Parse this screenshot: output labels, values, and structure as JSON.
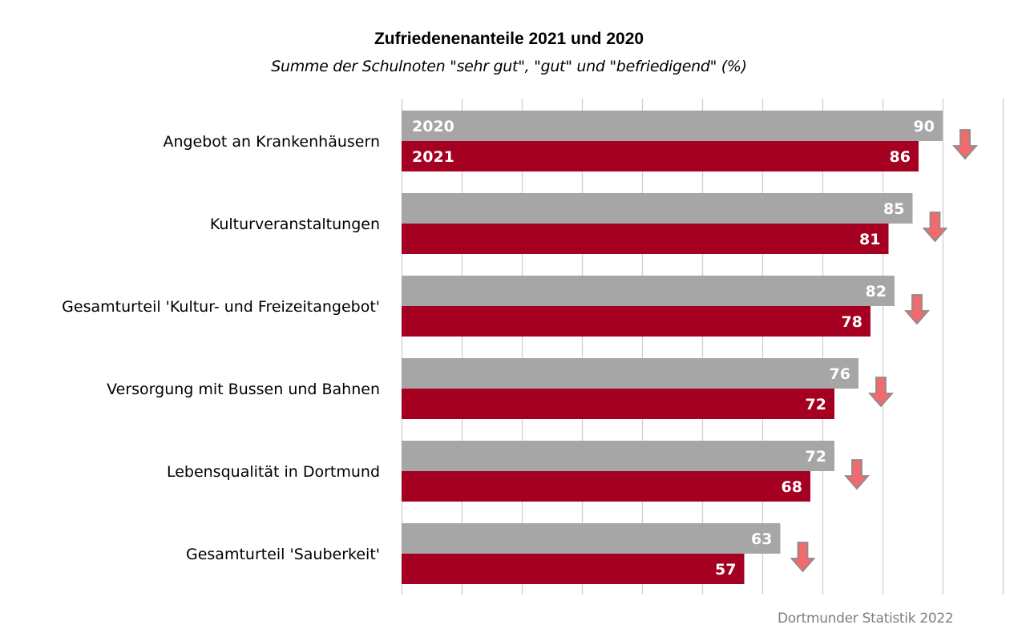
{
  "chart_data": {
    "type": "bar",
    "orientation": "horizontal",
    "title": "Zufriedenenanteile 2021 und 2020",
    "subtitle": "Summe der Schulnoten \"sehr gut\", \"gut\" und \"befriedigend\" (%)",
    "xlabel": "",
    "ylabel": "",
    "xlim": [
      0,
      100
    ],
    "x_tick_step": 10,
    "grid": true,
    "tick_labels_shown": false,
    "categories": [
      "Angebot an Krankenhäusern",
      "Kulturveranstaltungen",
      "Gesamturteil 'Kultur- und Freizeitangebot'",
      "Versorgung mit Bussen und Bahnen",
      "Lebensqualität in Dortmund",
      "Gesamturteil 'Sauberkeit'"
    ],
    "series": [
      {
        "name": "2020",
        "color": "#a6a6a6",
        "values": [
          90,
          85,
          82,
          76,
          72,
          63
        ]
      },
      {
        "name": "2021",
        "color": "#a50021",
        "values": [
          86,
          81,
          78,
          72,
          68,
          57
        ]
      }
    ],
    "series_labels_in_first_row": true,
    "trend_markers": {
      "icon": "arrow-down-icon",
      "meaning": "decrease from 2020 to 2021",
      "fill": "#f06a6e",
      "stroke": "#8c8c8c",
      "rows": [
        "down",
        "down",
        "down",
        "down",
        "down",
        "down"
      ]
    },
    "source": "Dortmunder Statistik 2022"
  }
}
